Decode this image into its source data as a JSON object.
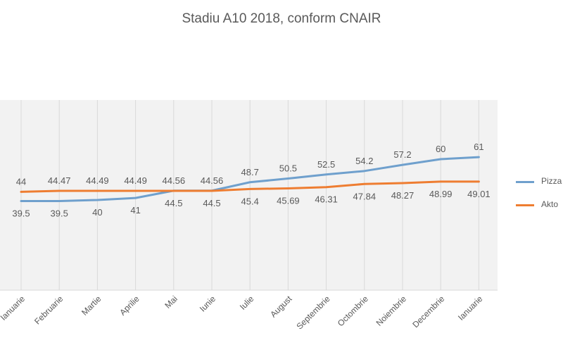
{
  "colors": {
    "pizza": "#6fa0cd",
    "aktor": "#ee7d31",
    "grid": "#d9d9d9",
    "text": "#595959"
  },
  "chart_data": {
    "type": "line",
    "title": "Stadiu A10 2018, conform CNAIR",
    "categories": [
      "Ianuarie",
      "Februarie",
      "Martie",
      "Aprilie",
      "Mai",
      "Iunie",
      "Iulie",
      "August",
      "Septembrie",
      "Octombrie",
      "Noiembrie",
      "Decembrie",
      "Ianuarie"
    ],
    "series": [
      {
        "name": "Pizza",
        "values": [
          39.5,
          39.5,
          40,
          41,
          44.56,
          44.56,
          48.7,
          50.5,
          52.5,
          54.2,
          57.2,
          60,
          61
        ]
      },
      {
        "name": "Akto",
        "values": [
          44,
          44.47,
          44.49,
          44.49,
          44.5,
          44.5,
          45.4,
          45.69,
          46.31,
          47.84,
          48.27,
          48.99,
          49.01
        ]
      }
    ],
    "data_labels": {
      "Pizza": [
        "39.5",
        "39.5",
        "40",
        "41",
        "44.56",
        "44.56",
        "48.7",
        "50.5",
        "52.5",
        "54.2",
        "57.2",
        "60",
        "61"
      ],
      "Akto": [
        "44",
        "44.47",
        "44.49",
        "44.49",
        "44.5",
        "44.5",
        "45.4",
        "45.69",
        "46.31",
        "47.84",
        "48.27",
        "48.99",
        "49.01"
      ]
    },
    "xlabel": "",
    "ylabel": "",
    "ylim": [
      0,
      80
    ],
    "grid": "vertical",
    "legend_position": "right"
  }
}
